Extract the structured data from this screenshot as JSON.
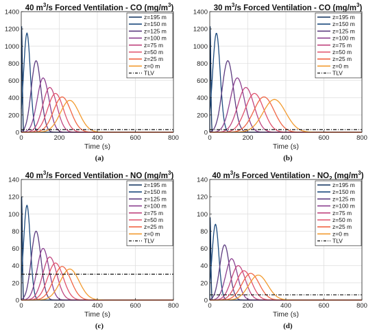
{
  "legend_entries": [
    "z=195 m",
    "z=150 m",
    "z=125 m",
    "z=100 m",
    "z=75 m",
    "z=50 m",
    "z=25 m",
    "z=0 m",
    "TLV"
  ],
  "colors": [
    "#0b2e5c",
    "#1c4a7e",
    "#5b3a7f",
    "#8a3e8f",
    "#c0467f",
    "#e0516c",
    "#f06545",
    "#f29a2e",
    "#f0b614"
  ],
  "chart_data": [
    {
      "type": "line",
      "title_parts": {
        "pre": "40 m",
        "sup": "3",
        "mid": "/s Forced Ventilation - CO (mg/m",
        "sup2": "3",
        "post": ")"
      },
      "xlabel": "Time (s)",
      "ylabel": "",
      "xlim": [
        0,
        800
      ],
      "ylim": [
        0,
        1400
      ],
      "xticks": [
        0,
        200,
        400,
        600,
        800
      ],
      "yticks": [
        0,
        200,
        400,
        600,
        800,
        1000,
        1200,
        1400
      ],
      "grid": true,
      "legend_position": "top-right",
      "sub_label": "(a)",
      "tlv": 30,
      "series": [
        {
          "name": "z=195 m",
          "peak_t": 2,
          "peak": 1230,
          "width": 5
        },
        {
          "name": "z=150 m",
          "peak_t": 30,
          "peak": 1150,
          "width": 25
        },
        {
          "name": "z=125 m",
          "peak_t": 78,
          "peak": 830,
          "width": 36
        },
        {
          "name": "z=100 m",
          "peak_t": 115,
          "peak": 630,
          "width": 44
        },
        {
          "name": "z=75 m",
          "peak_t": 150,
          "peak": 520,
          "width": 52
        },
        {
          "name": "z=50 m",
          "peak_t": 180,
          "peak": 450,
          "width": 58
        },
        {
          "name": "z=25 m",
          "peak_t": 215,
          "peak": 410,
          "width": 64
        },
        {
          "name": "z=0 m",
          "peak_t": 255,
          "peak": 370,
          "width": 70
        }
      ]
    },
    {
      "type": "line",
      "title_parts": {
        "pre": "30 m",
        "sup": "3",
        "mid": "/s Forced Ventilation - CO (mg/m",
        "sup2": "3",
        "post": ")"
      },
      "xlabel": "Time (s)",
      "ylabel": "",
      "xlim": [
        0,
        800
      ],
      "ylim": [
        0,
        1400
      ],
      "xticks": [
        0,
        200,
        400,
        600,
        800
      ],
      "yticks": [
        0,
        200,
        400,
        600,
        800,
        1000,
        1200,
        1400
      ],
      "grid": true,
      "legend_position": "top-right",
      "sub_label": "(b)",
      "tlv": 30,
      "series": [
        {
          "name": "z=195 m",
          "peak_t": 2,
          "peak": 1230,
          "width": 5
        },
        {
          "name": "z=150 m",
          "peak_t": 35,
          "peak": 1150,
          "width": 28
        },
        {
          "name": "z=125 m",
          "peak_t": 95,
          "peak": 830,
          "width": 42
        },
        {
          "name": "z=100 m",
          "peak_t": 145,
          "peak": 630,
          "width": 52
        },
        {
          "name": "z=75 m",
          "peak_t": 190,
          "peak": 520,
          "width": 60
        },
        {
          "name": "z=50 m",
          "peak_t": 235,
          "peak": 450,
          "width": 68
        },
        {
          "name": "z=25 m",
          "peak_t": 285,
          "peak": 410,
          "width": 76
        },
        {
          "name": "z=0 m",
          "peak_t": 340,
          "peak": 380,
          "width": 84
        }
      ]
    },
    {
      "type": "line",
      "title_parts": {
        "pre": "40 m",
        "sup": "3",
        "mid": "/s Forced Ventilation - NO (mg/m",
        "sup2": "3",
        "post": ")"
      },
      "xlabel": "Time (s)",
      "ylabel": "",
      "xlim": [
        0,
        800
      ],
      "ylim": [
        0,
        140
      ],
      "xticks": [
        0,
        200,
        400,
        600,
        800
      ],
      "yticks": [
        0,
        20,
        40,
        60,
        80,
        100,
        120,
        140
      ],
      "grid": true,
      "legend_position": "top-right",
      "sub_label": "(c)",
      "tlv": 30,
      "series": [
        {
          "name": "z=195 m",
          "peak_t": 2,
          "peak": 120,
          "width": 5
        },
        {
          "name": "z=150 m",
          "peak_t": 30,
          "peak": 110,
          "width": 25
        },
        {
          "name": "z=125 m",
          "peak_t": 78,
          "peak": 80,
          "width": 36
        },
        {
          "name": "z=100 m",
          "peak_t": 115,
          "peak": 60,
          "width": 44
        },
        {
          "name": "z=75 m",
          "peak_t": 150,
          "peak": 50,
          "width": 52
        },
        {
          "name": "z=50 m",
          "peak_t": 180,
          "peak": 43,
          "width": 58
        },
        {
          "name": "z=25 m",
          "peak_t": 215,
          "peak": 39,
          "width": 64
        },
        {
          "name": "z=0 m",
          "peak_t": 255,
          "peak": 36,
          "width": 70
        }
      ]
    },
    {
      "type": "line",
      "title_parts": {
        "pre": "40 m",
        "sup": "3",
        "mid": "/s Forced Ventilation - NO",
        "sub": "2",
        "post": " (mg/m",
        "sup2": "3",
        "post2": ")"
      },
      "xlabel": "Time (s)",
      "ylabel": "",
      "xlim": [
        0,
        800
      ],
      "ylim": [
        0,
        140
      ],
      "xticks": [
        0,
        200,
        400,
        600,
        800
      ],
      "yticks": [
        0,
        20,
        40,
        60,
        80,
        100,
        120,
        140
      ],
      "grid": true,
      "legend_position": "top-right",
      "sub_label": "(d)",
      "tlv": 6,
      "series": [
        {
          "name": "z=195 m",
          "peak_t": 2,
          "peak": 96,
          "width": 5
        },
        {
          "name": "z=150 m",
          "peak_t": 30,
          "peak": 88,
          "width": 25
        },
        {
          "name": "z=125 m",
          "peak_t": 78,
          "peak": 64,
          "width": 36
        },
        {
          "name": "z=100 m",
          "peak_t": 115,
          "peak": 48,
          "width": 44
        },
        {
          "name": "z=75 m",
          "peak_t": 150,
          "peak": 40,
          "width": 52
        },
        {
          "name": "z=50 m",
          "peak_t": 180,
          "peak": 34,
          "width": 58
        },
        {
          "name": "z=25 m",
          "peak_t": 215,
          "peak": 31,
          "width": 64
        },
        {
          "name": "z=0 m",
          "peak_t": 255,
          "peak": 29,
          "width": 70
        }
      ]
    }
  ]
}
